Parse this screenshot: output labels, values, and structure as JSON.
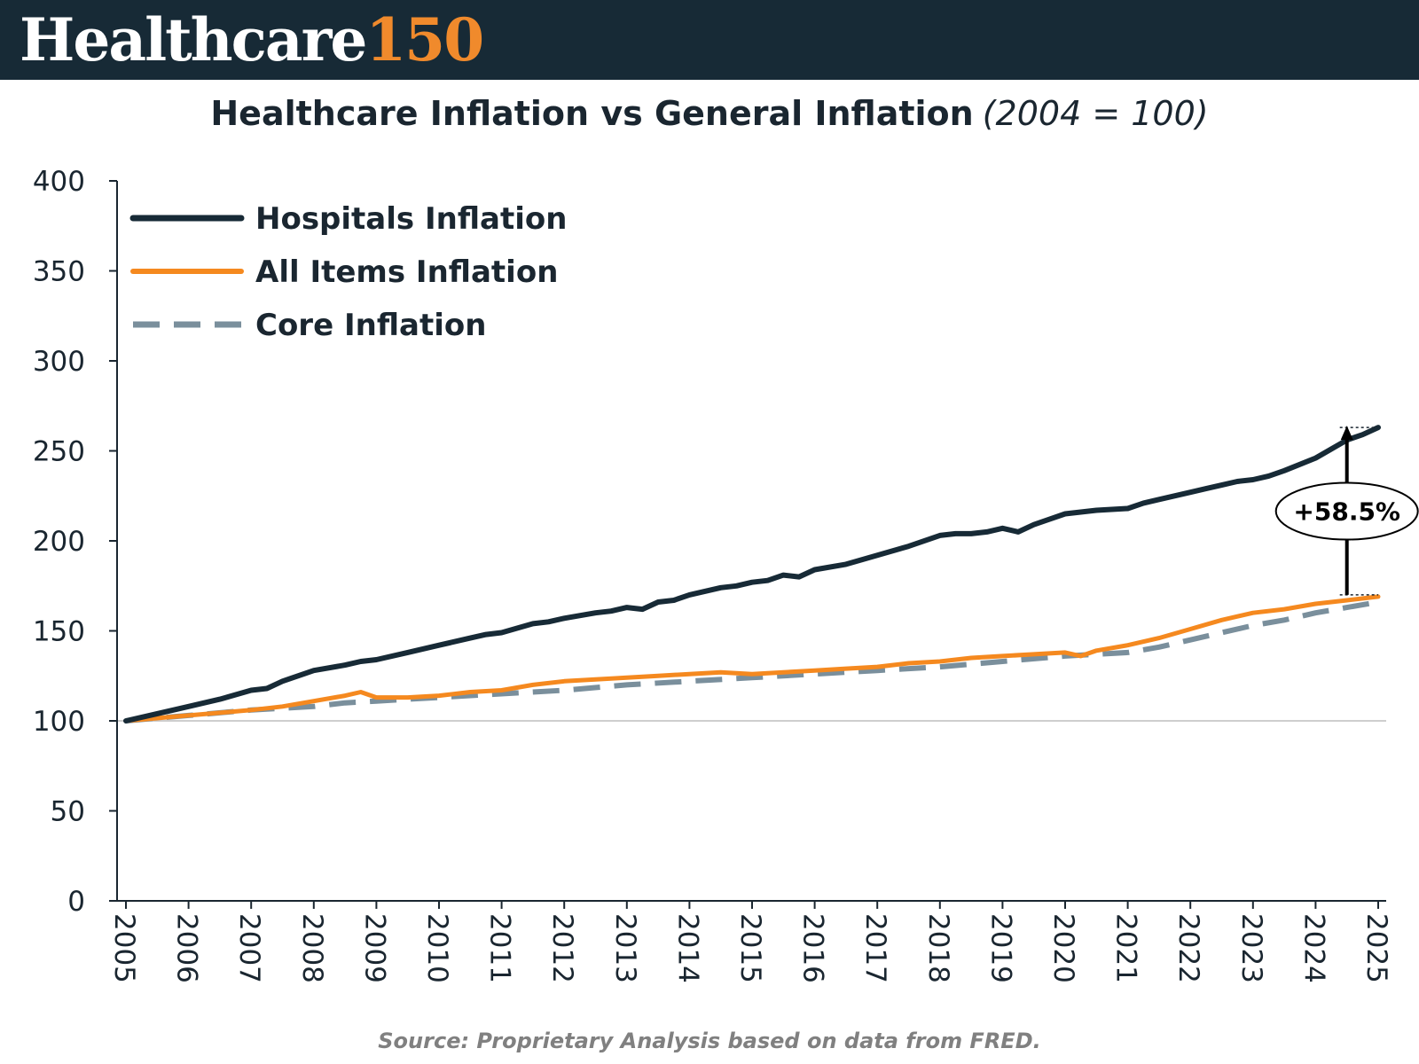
{
  "header": {
    "brand_word": "Healthcare",
    "brand_number": "150"
  },
  "colors": {
    "banner": "#172a36",
    "brand_accent": "#f08a2c",
    "hospitals": "#172a36",
    "all_items": "#f5891f",
    "core": "#7a8f9c"
  },
  "chart_data": {
    "type": "line",
    "title": "Healthcare Inflation vs General Inflation",
    "subtitle": "(2004 = 100)",
    "ylim": [
      0,
      400
    ],
    "yticks": [
      0,
      50,
      100,
      150,
      200,
      250,
      300,
      350,
      400
    ],
    "xlim": [
      2005,
      2025
    ],
    "xticks": [
      "2005",
      "2006",
      "2007",
      "2008",
      "2009",
      "2010",
      "2011",
      "2012",
      "2013",
      "2014",
      "2015",
      "2016",
      "2017",
      "2018",
      "2019",
      "2020",
      "2021",
      "2022",
      "2023",
      "2024",
      "2025"
    ],
    "reference_line": 100,
    "legend_position": "top-left",
    "series": [
      {
        "name": "Hospitals Inflation",
        "style": "solid",
        "x": [
          2005,
          2005.5,
          2006,
          2006.5,
          2007,
          2007.25,
          2007.5,
          2008,
          2008.5,
          2008.75,
          2009,
          2009.5,
          2010,
          2010.5,
          2010.75,
          2011,
          2011.5,
          2011.75,
          2012,
          2012.5,
          2012.75,
          2013,
          2013.25,
          2013.5,
          2013.75,
          2014,
          2014.5,
          2014.75,
          2015,
          2015.25,
          2015.5,
          2015.75,
          2016,
          2016.5,
          2017,
          2017.5,
          2018,
          2018.25,
          2018.5,
          2018.75,
          2019,
          2019.25,
          2019.5,
          2019.75,
          2020,
          2020.5,
          2021,
          2021.25,
          2021.5,
          2022,
          2022.25,
          2022.5,
          2022.75,
          2023,
          2023.25,
          2023.5,
          2024,
          2024.25,
          2024.5,
          2024.75,
          2025
        ],
        "values": [
          100,
          104,
          108,
          112,
          117,
          118,
          122,
          128,
          131,
          133,
          134,
          138,
          142,
          146,
          148,
          149,
          154,
          155,
          157,
          160,
          161,
          163,
          162,
          166,
          167,
          170,
          174,
          175,
          177,
          178,
          181,
          180,
          184,
          187,
          192,
          197,
          203,
          204,
          204,
          205,
          207,
          205,
          209,
          212,
          215,
          217,
          218,
          221,
          223,
          227,
          229,
          231,
          233,
          234,
          236,
          239,
          246,
          251,
          256,
          259,
          263
        ]
      },
      {
        "name": "All Items Inflation",
        "style": "solid",
        "x": [
          2005,
          2006,
          2007,
          2007.5,
          2008,
          2008.5,
          2008.75,
          2009,
          2009.5,
          2010,
          2010.5,
          2011,
          2011.5,
          2012,
          2012.5,
          2013,
          2013.5,
          2014,
          2014.5,
          2015,
          2015.5,
          2016,
          2016.5,
          2017,
          2017.5,
          2018,
          2018.5,
          2019,
          2019.5,
          2020,
          2020.25,
          2020.5,
          2021,
          2021.5,
          2022,
          2022.5,
          2023,
          2023.5,
          2024,
          2024.5,
          2025
        ],
        "values": [
          100,
          103,
          106,
          108,
          111,
          114,
          116,
          113,
          113,
          114,
          116,
          117,
          120,
          122,
          123,
          124,
          125,
          126,
          127,
          126,
          127,
          128,
          129,
          130,
          132,
          133,
          135,
          136,
          137,
          138,
          136,
          139,
          142,
          146,
          151,
          156,
          160,
          162,
          165,
          167,
          169
        ]
      },
      {
        "name": "Core Inflation",
        "style": "dashed",
        "x": [
          2005,
          2006,
          2007,
          2008,
          2008.5,
          2009,
          2009.5,
          2010,
          2011,
          2012,
          2013,
          2014,
          2015,
          2016,
          2017,
          2018,
          2019,
          2020,
          2020.5,
          2021,
          2021.5,
          2022,
          2022.5,
          2023,
          2023.5,
          2024,
          2024.5,
          2025
        ],
        "values": [
          100,
          103,
          106,
          108,
          110,
          111,
          112,
          113,
          115,
          117,
          120,
          122,
          124,
          126,
          128,
          130,
          133,
          136,
          137,
          138,
          141,
          145,
          149,
          153,
          156,
          160,
          163,
          166
        ]
      }
    ],
    "annotation": {
      "text": "+58.5%",
      "x": 2024.5
    }
  },
  "footer": {
    "source": "Source: Proprietary Analysis based on data from FRED."
  }
}
